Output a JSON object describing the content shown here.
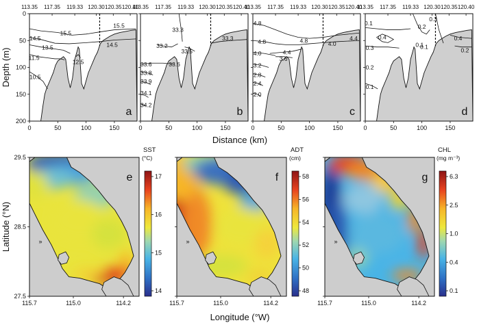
{
  "chart_data": {
    "type": "figure",
    "top_panels": {
      "type": "contour",
      "xlabel": "Distance (km)",
      "ylabel": "Depth (m)",
      "xlim": [
        0,
        190
      ],
      "ylim": [
        200,
        0
      ],
      "xticks": [
        "0",
        "50",
        "100",
        "150"
      ],
      "yticks": [
        "0",
        "50",
        "100",
        "150",
        "200"
      ],
      "top_lon_labels": [
        "113.35",
        "117.35",
        "119.33",
        "120.30",
        "120.35",
        "120.40"
      ],
      "top_lon_positions_km": [
        0,
        40,
        80,
        118,
        148,
        178
      ],
      "dashed_line_km": 124,
      "bathymetry": {
        "distance_km": [
          0,
          5,
          10,
          15,
          20,
          24,
          27,
          30,
          36,
          42,
          46,
          50,
          55,
          60,
          64,
          68,
          72,
          76,
          80,
          84,
          86,
          88,
          92,
          96,
          100,
          104,
          108,
          112,
          116,
          120,
          125,
          130,
          136,
          142,
          150,
          160,
          170,
          180,
          188
        ],
        "depth_m": [
          200,
          200,
          200,
          200,
          200,
          170,
          150,
          140,
          125,
          110,
          96,
          88,
          84,
          80,
          85,
          120,
          138,
          120,
          85,
          70,
          62,
          66,
          130,
          140,
          125,
          110,
          100,
          90,
          80,
          72,
          56,
          50,
          46,
          42,
          38,
          35,
          33,
          31,
          30
        ]
      },
      "panels": [
        {
          "label": "a",
          "variable": "temperature",
          "contours": [
            {
              "value": "15.5",
              "km": [
                0,
                20,
                50,
                75,
                100,
                124,
                150,
                188
              ],
              "depth": [
                28,
                32,
                35,
                40,
                38,
                34,
                30,
                28
              ]
            },
            {
              "value": "14.5",
              "km": [
                0,
                20,
                45,
                70,
                100,
                124,
                150,
                188
              ],
              "depth": [
                44,
                48,
                55,
                56,
                54,
                52,
                49,
                47
              ]
            },
            {
              "value": "13.5",
              "km": [
                0,
                20,
                40,
                60,
                72
              ],
              "depth": [
                58,
                62,
                65,
                68,
                74
              ]
            },
            {
              "value": "12.5",
              "km": [
                82,
                86,
                90
              ],
              "depth": [
                80,
                76,
                82
              ]
            },
            {
              "value": "11.5",
              "km": [
                0,
                15,
                30,
                45,
                55,
                62
              ],
              "depth": [
                76,
                80,
                82,
                84,
                84,
                86
              ]
            },
            {
              "value": "10.5",
              "km": [
                0,
                12,
                24,
                32
              ],
              "depth": [
                108,
                116,
                126,
                140
              ]
            }
          ],
          "labels": [
            {
              "text": "15.5",
              "km": 64,
              "depth": 36
            },
            {
              "text": "14.5",
              "km": 10,
              "depth": 46
            },
            {
              "text": "13.5",
              "km": 32,
              "depth": 63
            },
            {
              "text": "12.5",
              "km": 86,
              "depth": 90
            },
            {
              "text": "11.5",
              "km": 8,
              "depth": 82
            },
            {
              "text": "10.5",
              "km": 10,
              "depth": 118
            },
            {
              "text": "15.5",
              "km": 158,
              "depth": 22
            },
            {
              "text": "14.5",
              "km": 146,
              "depth": 58
            }
          ]
        },
        {
          "label": "b",
          "variable": "salinity",
          "contours": [
            {
              "value": "33.3",
              "km": [
                68,
                70,
                72,
                74
              ],
              "depth": [
                0,
                15,
                30,
                52
              ]
            },
            {
              "value": "33.2",
              "km": [
                30,
                40,
                55,
                66
              ],
              "depth": [
                58,
                60,
                62,
                56
              ]
            },
            {
              "value": "33.3",
              "km": [
                124,
                140,
                160,
                188
              ],
              "depth": [
                55,
                52,
                50,
                48
              ]
            },
            {
              "value": "33.5",
              "km": [
                78,
                86,
                96
              ],
              "depth": [
                62,
                64,
                70
              ]
            },
            {
              "value": "33.6",
              "km": [
                0,
                20,
                40,
                60
              ],
              "depth": [
                94,
                92,
                92,
                94
              ]
            },
            {
              "value": "33.8",
              "km": [
                0,
                12,
                22
              ],
              "depth": [
                108,
                110,
                114
              ]
            },
            {
              "value": "33.9",
              "km": [
                0,
                10,
                18
              ],
              "depth": [
                126,
                128,
                132
              ]
            },
            {
              "value": "34.1",
              "km": [
                0,
                8,
                14
              ],
              "depth": [
                150,
                152,
                156
              ]
            },
            {
              "value": "34.2",
              "km": [
                0,
                6,
                10
              ],
              "depth": [
                168,
                170,
                172
              ]
            }
          ],
          "labels": [
            {
              "text": "33.3",
              "km": 66,
              "depth": 30
            },
            {
              "text": "33.2",
              "km": 38,
              "depth": 60
            },
            {
              "text": "33.5",
              "km": 82,
              "depth": 70
            },
            {
              "text": "33.3",
              "km": 154,
              "depth": 46
            },
            {
              "text": "33.6",
              "km": 10,
              "depth": 94
            },
            {
              "text": "33.6",
              "km": 60,
              "depth": 94
            },
            {
              "text": "33.8",
              "km": 10,
              "depth": 110
            },
            {
              "text": "33.9",
              "km": 10,
              "depth": 126
            },
            {
              "text": "34.1",
              "km": 10,
              "depth": 148
            },
            {
              "text": "34.2",
              "km": 10,
              "depth": 170
            }
          ]
        },
        {
          "label": "c",
          "variable": "density",
          "contours": [
            {
              "value": "4.8",
              "km": [
                0,
                20,
                40,
                60,
                80,
                100,
                124,
                150,
                188
              ],
              "depth": [
                18,
                22,
                30,
                38,
                44,
                46,
                44,
                40,
                36
              ]
            },
            {
              "value": "4.8",
              "km": [
                0,
                20,
                40,
                60,
                80,
                100,
                124,
                150,
                188
              ],
              "depth": [
                50,
                52,
                56,
                58,
                58,
                56,
                54,
                52,
                50
              ]
            },
            {
              "value": "4.4",
              "km": [
                30,
                50,
                70,
                86
              ],
              "depth": [
                74,
                72,
                70,
                66
              ]
            },
            {
              "value": "4.0",
              "km": [
                0,
                20,
                40
              ],
              "depth": [
                72,
                74,
                78
              ]
            },
            {
              "value": "3.6",
              "km": [
                40,
                55,
                70
              ],
              "depth": [
                80,
                80,
                82
              ]
            },
            {
              "value": "3.2",
              "km": [
                0,
                15,
                28
              ],
              "depth": [
                94,
                96,
                100
              ]
            },
            {
              "value": "2.8",
              "km": [
                0,
                12,
                22
              ],
              "depth": [
                112,
                114,
                118
              ]
            },
            {
              "value": "2.4",
              "km": [
                0,
                10,
                18
              ],
              "depth": [
                128,
                130,
                134
              ]
            },
            {
              "value": "2.0",
              "km": [
                0,
                8,
                14
              ],
              "depth": [
                148,
                150,
                154
              ]
            }
          ],
          "labels": [
            {
              "text": "4.8",
              "km": 8,
              "depth": 18
            },
            {
              "text": "4.8",
              "km": 16,
              "depth": 52
            },
            {
              "text": "4.8",
              "km": 90,
              "depth": 50
            },
            {
              "text": "4.4",
              "km": 60,
              "depth": 72
            },
            {
              "text": "4.4",
              "km": 178,
              "depth": 46
            },
            {
              "text": "4.0",
              "km": 8,
              "depth": 74
            },
            {
              "text": "4.0",
              "km": 140,
              "depth": 56
            },
            {
              "text": "3.6",
              "km": 54,
              "depth": 84
            },
            {
              "text": "3.2",
              "km": 8,
              "depth": 96
            },
            {
              "text": "2.8",
              "km": 8,
              "depth": 114
            },
            {
              "text": "2.4",
              "km": 8,
              "depth": 130
            },
            {
              "text": "2.0",
              "km": 8,
              "depth": 150
            }
          ]
        },
        {
          "label": "d",
          "variable": "chlorophyll",
          "contours": [
            {
              "value": "0.1",
              "km": [
                0,
                20,
                40,
                60,
                80
              ],
              "depth": [
                26,
                28,
                30,
                30,
                28
              ]
            },
            {
              "value": "0.2",
              "km": [
                84,
                92,
                100,
                108,
                114
              ],
              "depth": [
                0,
                20,
                34,
                38,
                30
              ]
            },
            {
              "value": "0.3",
              "km": [
                0,
                20,
                40,
                60
              ],
              "depth": [
                60,
                62,
                62,
                64
              ]
            },
            {
              "value": "0.4",
              "km": [
                20,
                30,
                40,
                50,
                40,
                30,
                20
              ],
              "depth": [
                44,
                38,
                42,
                48,
                54,
                52,
                44
              ]
            },
            {
              "value": "0.3",
              "km": [
                124,
                130,
                138
              ],
              "depth": [
                0,
                30,
                55
              ]
            },
            {
              "value": "0.4",
              "km": [
                150,
                165,
                188
              ],
              "depth": [
                40,
                44,
                46
              ]
            },
            {
              "value": "0.2",
              "km": [
                158,
                170,
                188
              ],
              "depth": [
                60,
                62,
                62
              ]
            },
            {
              "value": "0.1",
              "km": [
                0,
                12,
                22
              ],
              "depth": [
                130,
                134,
                140
              ]
            }
          ],
          "labels": [
            {
              "text": "0.1",
              "km": 6,
              "depth": 18
            },
            {
              "text": "0.4",
              "km": 30,
              "depth": 44
            },
            {
              "text": "0.3",
              "km": 8,
              "depth": 64
            },
            {
              "text": "0.2",
              "km": 100,
              "depth": 24
            },
            {
              "text": "0.3",
              "km": 120,
              "depth": 10
            },
            {
              "text": "0.1",
              "km": 96,
              "depth": 58
            },
            {
              "text": "0.1",
              "km": 104,
              "depth": 62
            },
            {
              "text": "0.4",
              "km": 164,
              "depth": 46
            },
            {
              "text": "0.2",
              "km": 176,
              "depth": 68
            },
            {
              "text": "0.2",
              "km": 8,
              "depth": 100
            },
            {
              "text": "0.1",
              "km": 8,
              "depth": 136
            }
          ]
        }
      ]
    },
    "bottom_panels": {
      "type": "heatmap",
      "xlabel": "Longitude (°W)",
      "ylabel": "Latitude (°N)",
      "xlim": [
        115.7,
        113.95
      ],
      "ylim": [
        27.5,
        29.5
      ],
      "xticks": [
        "115.7",
        "115.0",
        "114.2"
      ],
      "xtick_values": [
        115.7,
        115.0,
        114.2
      ],
      "yticks": [
        "29.5",
        "28.5",
        "27.5"
      ],
      "ytick_values": [
        29.5,
        28.5,
        27.5
      ],
      "panels": [
        {
          "label": "e",
          "variable": "SST",
          "units": "(°C)",
          "ticks": [
            "17",
            "16",
            "15",
            "14"
          ],
          "range": [
            13.9,
            17.4
          ]
        },
        {
          "label": "f",
          "variable": "ADT",
          "units": "(cm)",
          "ticks": [
            "58",
            "56",
            "54",
            "52",
            "50",
            "48"
          ],
          "range": [
            47,
            58.5
          ]
        },
        {
          "label": "g",
          "variable": "CHL",
          "units": "(mg m⁻³)",
          "ticks": [
            "6.3",
            "2.5",
            "1.0",
            "0.4",
            "0.1"
          ],
          "range": [
            0.07,
            7.5
          ]
        }
      ]
    }
  }
}
